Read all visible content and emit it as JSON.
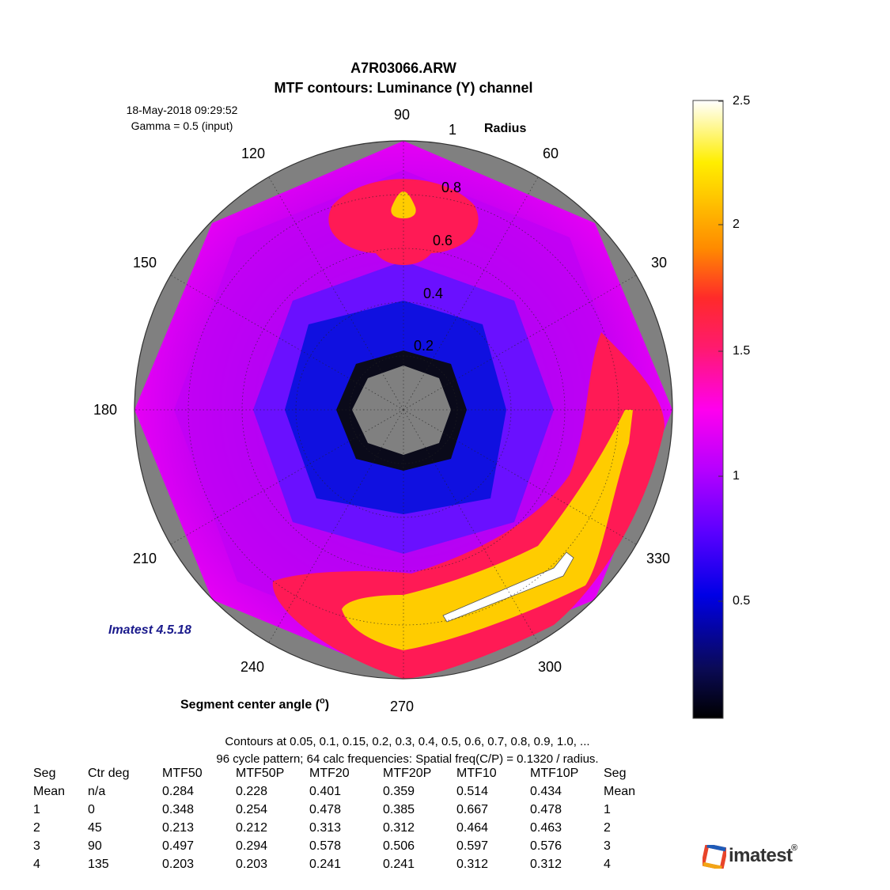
{
  "header": {
    "file": "A7R03066.ARW",
    "subtitle": "MTF contours:  Luminance (Y) channel",
    "date": "18-May-2018 09:29:52",
    "gamma": "Gamma = 0.5 (input)",
    "version": "Imatest 4.5.18"
  },
  "chart_data": {
    "type": "heatmap",
    "projection": "polar",
    "title": "MTF contours:  Luminance (Y) channel",
    "radius_label": "Radius",
    "angle_label_prefix": "Segment center angle (",
    "angle_label_unit": "o",
    "angle_label_suffix": ")",
    "angle_ticks": [
      "90",
      "60",
      "30",
      "330",
      "300",
      "270",
      "240",
      "210",
      "180",
      "150",
      "120"
    ],
    "radius_ticks": [
      "1",
      "0.8",
      "0.6",
      "0.4",
      "0.2"
    ],
    "radius_range": [
      0,
      1
    ],
    "grid": true,
    "colorbar": {
      "range": [
        0,
        2.5
      ],
      "ticks": [
        "2.5",
        "2",
        "1.5",
        "1",
        "0.5"
      ],
      "colors": [
        "#000000",
        "#0000e6",
        "#8a00ff",
        "#ff00ff",
        "#ff1a6e",
        "#ff9a00",
        "#ffe600",
        "#ffffff"
      ]
    },
    "regions": [
      {
        "level": 0.85,
        "note": "outer ring"
      },
      {
        "level": 1.55,
        "note": "top lobe"
      },
      {
        "level": 1.55,
        "note": "bottom-right lobe"
      },
      {
        "level": 2.0,
        "note": "bottom-right band"
      },
      {
        "level": 2.4,
        "note": "white peak"
      },
      {
        "level": 2.0,
        "note": "top spot"
      },
      {
        "level": 0.25,
        "note": "inner dark ring"
      }
    ],
    "contours_note": "Contours at 0.05, 0.1, 0.15, 0.2, 0.3, 0.4, 0.5, 0.6, 0.7, 0.8, 0.9, 1.0, ...",
    "pattern_note": "96 cycle pattern;  64 calc frequencies: Spatial freq(C/P) = 0.1320 / radius."
  },
  "table": {
    "headers": [
      "Seg",
      "Ctr deg",
      "MTF50",
      "MTF50P",
      "MTF20",
      "MTF20P",
      "MTF10",
      "MTF10P",
      "Seg"
    ],
    "rows": [
      [
        "Mean",
        "n/a",
        "0.284",
        "0.228",
        "0.401",
        "0.359",
        "0.514",
        "0.434",
        "Mean"
      ],
      [
        "1",
        "0",
        "0.348",
        "0.254",
        "0.478",
        "0.385",
        "0.667",
        "0.478",
        "1"
      ],
      [
        "2",
        "45",
        "0.213",
        "0.212",
        "0.313",
        "0.312",
        "0.464",
        "0.463",
        "2"
      ],
      [
        "3",
        "90",
        "0.497",
        "0.294",
        "0.578",
        "0.506",
        "0.597",
        "0.576",
        "3"
      ],
      [
        "4",
        "135",
        "0.203",
        "0.203",
        "0.241",
        "0.241",
        "0.312",
        "0.312",
        "4"
      ]
    ]
  },
  "logo": {
    "text": "imatest",
    "mark": "®"
  }
}
